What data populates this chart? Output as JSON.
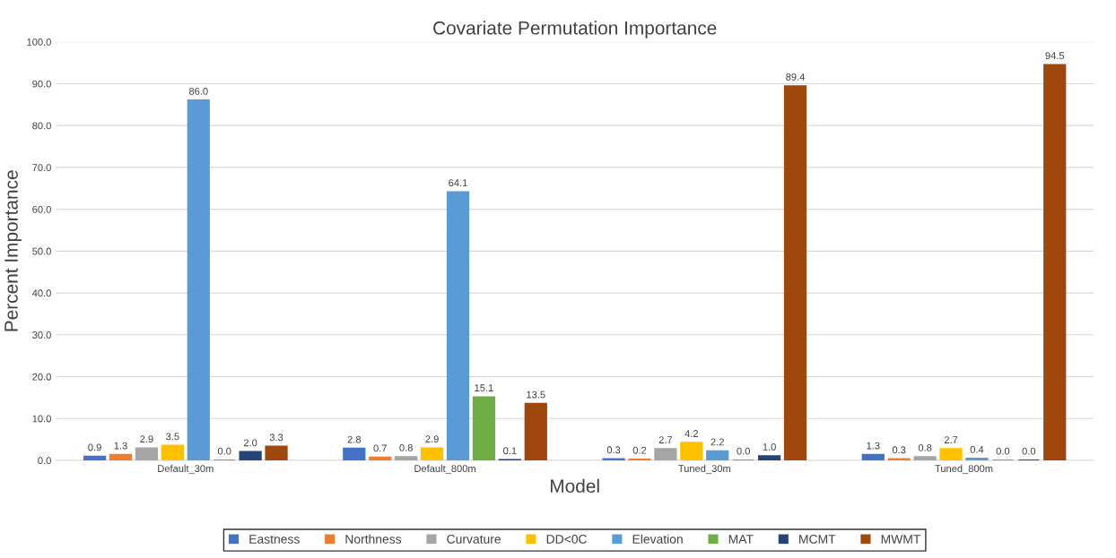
{
  "chart_data": {
    "type": "bar",
    "title": "Covariate Permutation Importance",
    "xlabel": "Model",
    "ylabel": "Percent Importance",
    "categories": [
      "Default_30m",
      "Default_800m",
      "Tuned_30m",
      "Tuned_800m"
    ],
    "series": [
      {
        "name": "Eastness",
        "color": "#4472c4",
        "values": [
          0.9,
          2.8,
          0.3,
          1.3
        ],
        "value_labels": [
          "0.9",
          "2.8",
          "0.3",
          "1.3"
        ]
      },
      {
        "name": "Northness",
        "color": "#ed7d31",
        "values": [
          1.3,
          0.7,
          0.2,
          0.3
        ],
        "value_labels": [
          "1.3",
          "0.7",
          "0.2",
          "0.3"
        ]
      },
      {
        "name": "Curvature",
        "color": "#a5a5a5",
        "values": [
          2.9,
          0.8,
          2.7,
          0.8
        ],
        "value_labels": [
          "2.9",
          "0.8",
          "2.7",
          "0.8"
        ]
      },
      {
        "name": "DD<0C",
        "color": "#ffc000",
        "values": [
          3.5,
          2.9,
          4.2,
          2.7
        ],
        "value_labels": [
          "3.5",
          "2.9",
          "4.2",
          "2.7"
        ]
      },
      {
        "name": "Elevation",
        "color": "#5b9bd5",
        "values": [
          86.0,
          64.1,
          2.2,
          0.4
        ],
        "value_labels": [
          "86.0",
          "64.1",
          "2.2",
          "0.4"
        ]
      },
      {
        "name": "MAT",
        "color": "#70ad47",
        "values": [
          0.0,
          15.1,
          0.0,
          0.0
        ],
        "value_labels": [
          "0.0",
          "15.1",
          "0.0",
          "0.0"
        ]
      },
      {
        "name": "MCMT",
        "color": "#264478",
        "values": [
          2.0,
          0.1,
          1.0,
          0.0
        ],
        "value_labels": [
          "2.0",
          "0.1",
          "1.0",
          "0.0"
        ]
      },
      {
        "name": "MWMT",
        "color": "#9e480e",
        "values": [
          3.3,
          13.5,
          89.4,
          94.5
        ],
        "value_labels": [
          "3.3",
          "13.5",
          "89.4",
          "94.5"
        ]
      }
    ],
    "ylim": [
      0,
      100
    ],
    "yticks": [
      {
        "value": 0,
        "label": "0.0"
      },
      {
        "value": 10,
        "label": "10.0"
      },
      {
        "value": 20,
        "label": "20.0"
      },
      {
        "value": 30,
        "label": "30.0"
      },
      {
        "value": 40,
        "label": "40.0"
      },
      {
        "value": 50,
        "label": "50.0"
      },
      {
        "value": 60,
        "label": "60.0"
      },
      {
        "value": 70,
        "label": "70.0"
      },
      {
        "value": 80,
        "label": "80.0"
      },
      {
        "value": 90,
        "label": "90.0"
      },
      {
        "value": 100,
        "label": "100.0"
      }
    ],
    "grid": "y",
    "legend": "bottom"
  }
}
